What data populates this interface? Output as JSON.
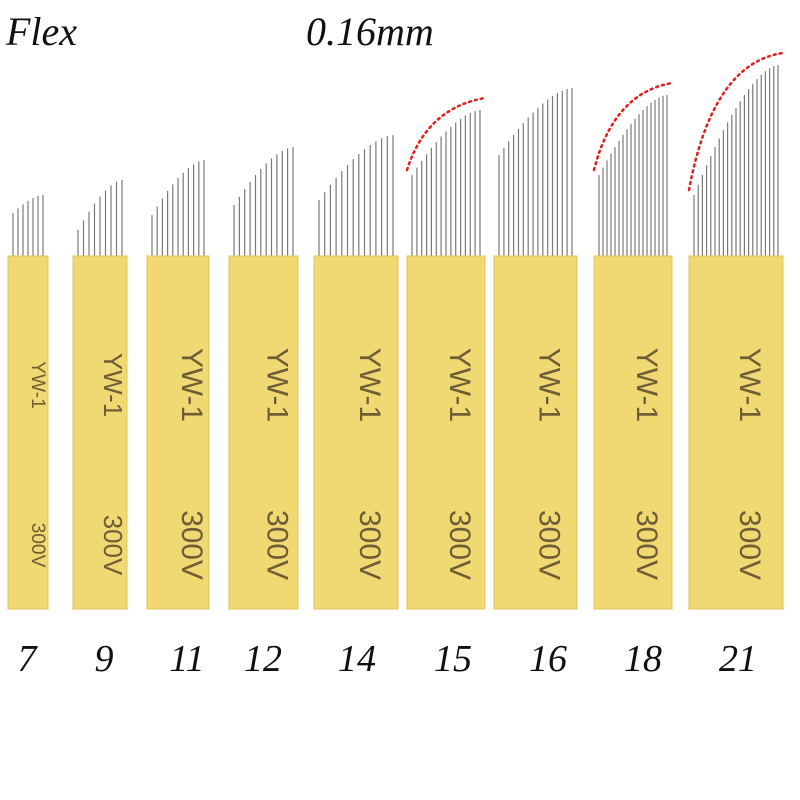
{
  "header": {
    "type": "Flex",
    "diameter": "0.16mm"
  },
  "blade_text": {
    "model": "YW-1",
    "code": "300V"
  },
  "colors": {
    "blade_body": "#F0D873",
    "blade_edge": "#E3C458",
    "blade_print": "#6E5E34",
    "needle": "#7A7A7A",
    "curve_marker": "#E02020",
    "label_text": "#111111"
  },
  "blades": [
    {
      "pins": "7",
      "curve_marker": false
    },
    {
      "pins": "9",
      "curve_marker": false
    },
    {
      "pins": "11",
      "curve_marker": false
    },
    {
      "pins": "12",
      "curve_marker": false
    },
    {
      "pins": "14",
      "curve_marker": false
    },
    {
      "pins": "15",
      "curve_marker": true
    },
    {
      "pins": "16",
      "curve_marker": false
    },
    {
      "pins": "18",
      "curve_marker": true
    },
    {
      "pins": "21",
      "curve_marker": true
    }
  ]
}
